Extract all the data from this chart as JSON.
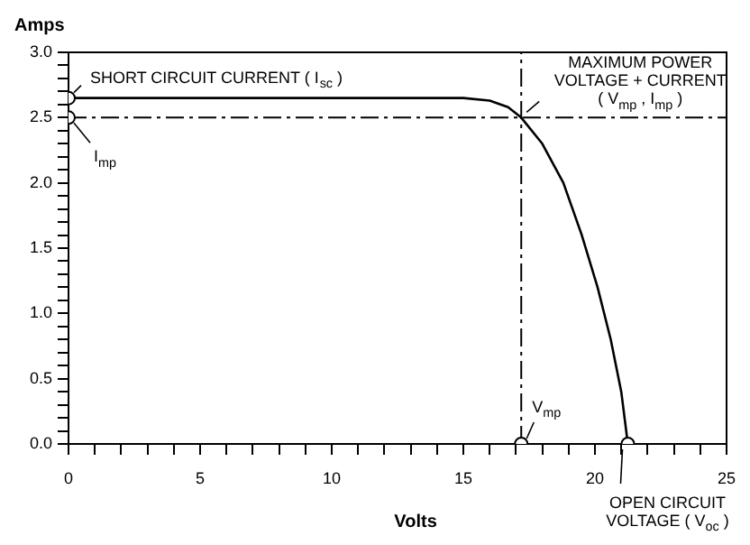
{
  "chart_data": {
    "type": "line",
    "xlabel": "Volts",
    "ylabel": "Amps",
    "series": [
      {
        "color": "#000000",
        "marker": "none",
        "x": [
          0,
          15,
          16,
          16.7,
          17.2,
          18,
          18.8,
          19.5,
          20.1,
          20.6,
          21,
          21.25
        ],
        "values": [
          2.65,
          2.65,
          2.63,
          2.58,
          2.5,
          2.3,
          2.0,
          1.6,
          1.2,
          0.8,
          0.4,
          0
        ]
      },
      {
        "type": "scatter",
        "color": "#000000",
        "marker": "circle",
        "x": [
          0,
          0,
          17.2,
          21.25
        ],
        "values": [
          2.65,
          2.5,
          0,
          0
        ]
      }
    ],
    "xlim": [
      0,
      25
    ],
    "xticks": [
      0,
      {
        "value": 1,
        "label": null
      },
      {
        "value": 2,
        "label": null
      },
      {
        "value": 3,
        "label": null
      },
      {
        "value": 4,
        "label": null
      },
      5,
      {
        "value": 6,
        "label": null
      },
      {
        "value": 7,
        "label": null
      },
      {
        "value": 8,
        "label": null
      },
      {
        "value": 9,
        "label": null
      },
      10,
      {
        "value": 11,
        "label": null
      },
      {
        "value": 12,
        "label": null
      },
      {
        "value": 13,
        "label": null
      },
      {
        "value": 14,
        "label": null
      },
      15,
      {
        "value": 16,
        "label": null
      },
      {
        "value": 17,
        "label": null
      },
      {
        "value": 18,
        "label": null
      },
      {
        "value": 19,
        "label": null
      },
      20,
      {
        "value": 21,
        "label": null
      },
      {
        "value": 22,
        "label": null
      },
      {
        "value": 23,
        "label": null
      },
      {
        "value": 24,
        "label": null
      },
      25
    ],
    "ylim": [
      0,
      3
    ],
    "yticks": [
      {
        "value": 0,
        "label": "0.0"
      },
      {
        "value": 0.1,
        "label": null
      },
      {
        "value": 0.2,
        "label": null
      },
      {
        "value": 0.3,
        "label": null
      },
      {
        "value": 0.4,
        "label": null
      },
      {
        "value": 0.5,
        "label": "0.5"
      },
      {
        "value": 0.6,
        "label": null
      },
      {
        "value": 0.7,
        "label": null
      },
      {
        "value": 0.8,
        "label": null
      },
      {
        "value": 0.9,
        "label": null
      },
      {
        "value": 1,
        "label": "1.0"
      },
      {
        "value": 1.1,
        "label": null
      },
      {
        "value": 1.2,
        "label": null
      },
      {
        "value": 1.3,
        "label": null
      },
      {
        "value": 1.4,
        "label": null
      },
      {
        "value": 1.5,
        "label": "1.5"
      },
      {
        "value": 1.6,
        "label": null
      },
      {
        "value": 1.7,
        "label": null
      },
      {
        "value": 1.8,
        "label": null
      },
      {
        "value": 1.9,
        "label": null
      },
      {
        "value": 2,
        "label": "2.0"
      },
      {
        "value": 2.1,
        "label": null
      },
      {
        "value": 2.2,
        "label": null
      },
      {
        "value": 2.3,
        "label": null
      },
      {
        "value": 2.4,
        "label": null
      },
      {
        "value": 2.5,
        "label": "2.5"
      },
      {
        "value": 2.6,
        "label": null
      },
      {
        "value": 2.7,
        "label": null
      },
      {
        "value": 2.8,
        "label": null
      },
      {
        "value": 2.9,
        "label": null
      },
      {
        "value": 3,
        "label": "3.0"
      }
    ],
    "grid": false,
    "legend": false,
    "ref_lines": [
      {
        "axis": "y",
        "value": 2.5,
        "line_style": "dashed",
        "color": "#000000"
      },
      {
        "axis": "x",
        "value": 17.2,
        "line_style": "dashed",
        "color": "#000000"
      }
    ],
    "annotations": [
      {
        "text": "SHORT CIRCUIT CURRENT ( I$_{sc}$ )",
        "x": 0,
        "y": 2.65
      },
      {
        "text": "I$_{mp}$",
        "x": 0,
        "y": 2.5
      },
      {
        "text": "MAXIMUM POWER\nVOLTAGE + CURRENT\n( V$_{mp}$ , I$_{mp}$ )",
        "x": 17.2,
        "y": 2.5
      },
      {
        "text": "V$_{mp}$",
        "x": 17.2,
        "y": 0
      },
      {
        "text": "OPEN CIRCUIT\nVOLTAGE ( V$_{oc}$ )",
        "x": 21.25,
        "y": 0
      }
    ]
  }
}
